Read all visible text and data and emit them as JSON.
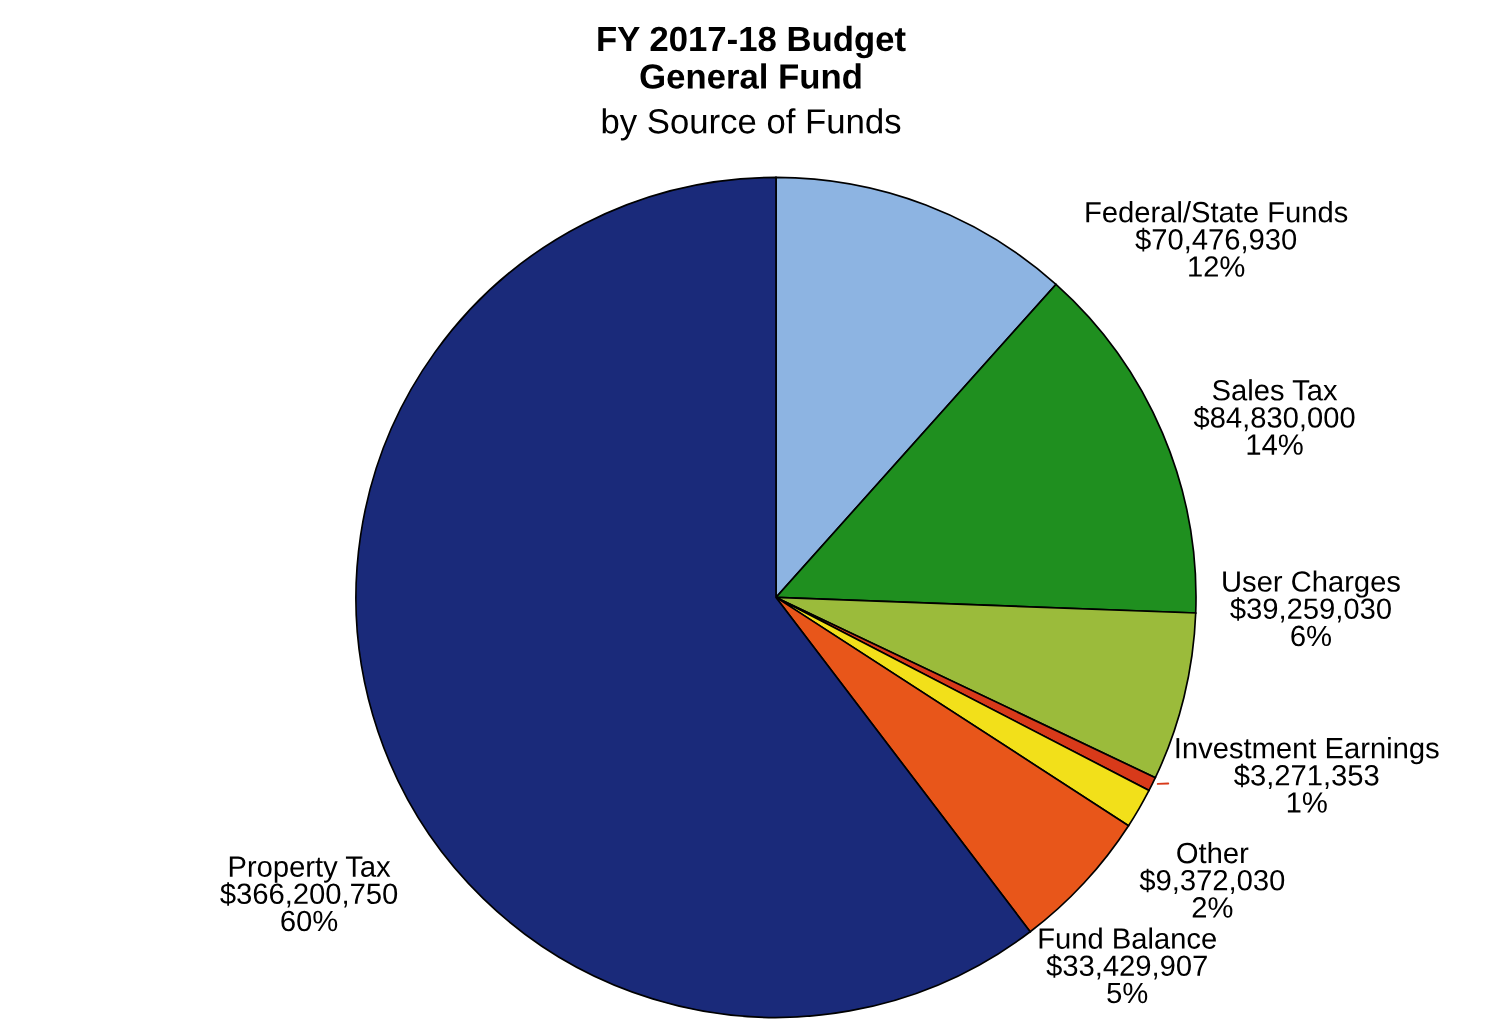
{
  "chart_data": {
    "type": "pie",
    "title": "FY 2017-18 Budget\nGeneral Fund",
    "subtitle": "by Source of Funds",
    "categories": [
      "Federal/State Funds",
      "Sales Tax",
      "User Charges",
      "Investment Earnings",
      "Other",
      "Fund Balance",
      "Property Tax"
    ],
    "values": [
      70476930,
      84830000,
      39259030,
      3271353,
      9372030,
      33429907,
      366200750
    ],
    "value_labels": [
      "$70,476,930\n12%",
      "$84,830,000\n14%",
      "$39,259,030\n6%",
      "$3,271,353\n1%",
      "$9,372,030\n2%",
      "$33,429,907\n5%",
      "$366,200,750\n60%"
    ],
    "colors": [
      "#8db4e2",
      "#1f8f1f",
      "#9bbb3b",
      "#d83a1a",
      "#f2e01a",
      "#e8561a",
      "#1a2a7a"
    ]
  }
}
